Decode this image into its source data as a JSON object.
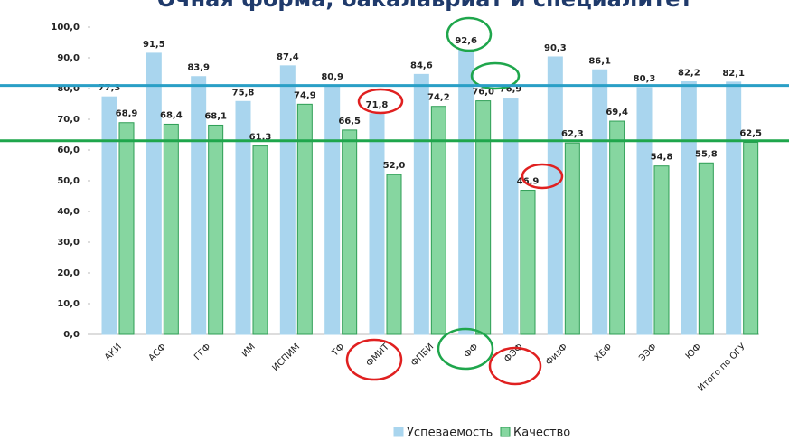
{
  "chart_data": {
    "type": "bar",
    "title": "Очная форма, бакалавриат и специалитет",
    "categories": [
      "АКИ",
      "АСФ",
      "ГГФ",
      "ИМ",
      "ИСПИМ",
      "ТФ",
      "ФМИТ",
      "ФПБИ",
      "ФФ",
      "ФЭФ",
      "ФизФ",
      "ХБФ",
      "ЭЭФ",
      "ЮФ",
      "Итого по ОГУ"
    ],
    "series": [
      {
        "name": "Успеваемость",
        "color": "#a9d5ee",
        "values": [
          77.3,
          91.5,
          83.9,
          75.8,
          87.4,
          80.9,
          71.8,
          84.6,
          92.6,
          76.9,
          90.3,
          86.1,
          80.3,
          82.2,
          82.1
        ],
        "value_labels": [
          "77,3",
          "91,5",
          "83,9",
          "75,8",
          "87,4",
          "80,9",
          "71,8",
          "84,6",
          "92,6",
          "76,9",
          "90,3",
          "86,1",
          "80,3",
          "82,2",
          "82,1"
        ]
      },
      {
        "name": "Качество",
        "color": "#86d6a0",
        "values": [
          68.9,
          68.4,
          68.1,
          61.3,
          74.9,
          66.5,
          52.0,
          74.2,
          76.0,
          46.9,
          62.3,
          69.4,
          54.8,
          55.8,
          62.5
        ],
        "value_labels": [
          "68,9",
          "68,4",
          "68,1",
          "61,3",
          "74,9",
          "66,5",
          "52,0",
          "74,2",
          "76,0",
          "46,9",
          "62,3",
          "69,4",
          "54,8",
          "55,8",
          "62,5"
        ]
      }
    ],
    "ylim": [
      0,
      100
    ],
    "yticks": [
      {
        "value": 0,
        "label": "0,0"
      },
      {
        "value": 10,
        "label": "10,0"
      },
      {
        "value": 20,
        "label": "20,0"
      },
      {
        "value": 30,
        "label": "30,0"
      },
      {
        "value": 40,
        "label": "40,0"
      },
      {
        "value": 50,
        "label": "50,0"
      },
      {
        "value": 60,
        "label": "60,0"
      },
      {
        "value": 70,
        "label": "70,0"
      },
      {
        "value": 80,
        "label": "80,0"
      },
      {
        "value": 90,
        "label": "90,0"
      },
      {
        "value": 100,
        "label": "100,0"
      }
    ],
    "reference_lines": [
      {
        "value": 81,
        "color": "#2a9fc6"
      },
      {
        "value": 63,
        "color": "#1fa64c"
      }
    ]
  }
}
